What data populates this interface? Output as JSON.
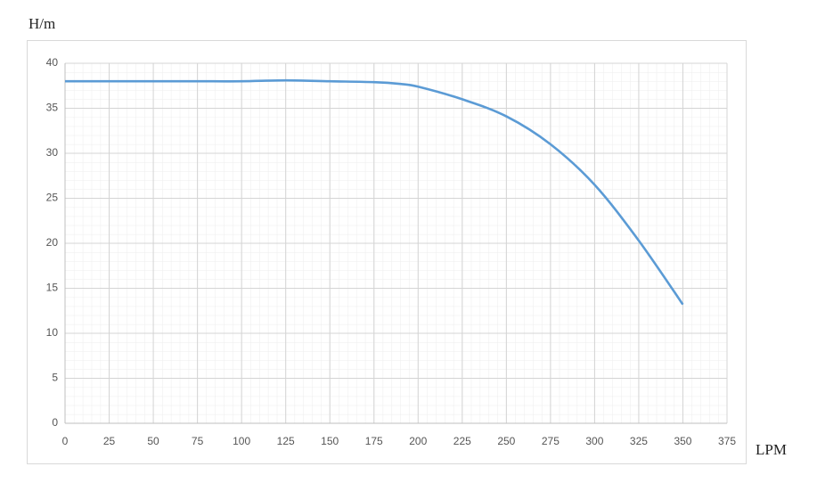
{
  "chart_data": {
    "type": "line",
    "ylabel": "H/m",
    "xlabel": "LPM",
    "x": [
      0,
      25,
      50,
      75,
      100,
      125,
      150,
      175,
      190,
      200,
      225,
      250,
      275,
      300,
      325,
      350
    ],
    "series": [
      {
        "color": "#5b9bd5",
        "values": [
          38,
          38,
          38,
          38,
          38,
          38.1,
          38,
          37.9,
          37.7,
          37.4,
          36,
          34.1,
          31,
          26.5,
          20.3,
          13.2
        ]
      }
    ],
    "xlim": [
      0,
      375
    ],
    "xticks": [
      0,
      25,
      50,
      75,
      100,
      125,
      150,
      175,
      200,
      225,
      250,
      275,
      300,
      325,
      350,
      375
    ],
    "ylim": [
      0,
      40
    ],
    "yticks": [
      0,
      5,
      10,
      15,
      20,
      25,
      30,
      35,
      40
    ],
    "grid": true
  }
}
